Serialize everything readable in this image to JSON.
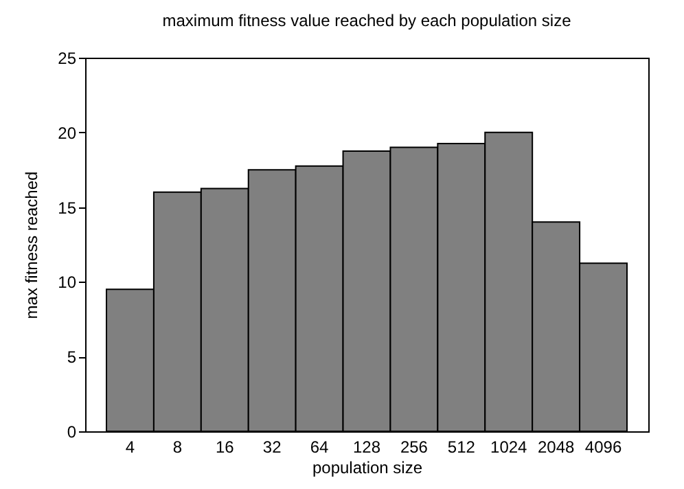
{
  "chart_data": {
    "type": "bar",
    "title": "maximum fitness value reached by each population size",
    "xlabel": "population size",
    "ylabel": "max fitness reached",
    "categories": [
      "4",
      "8",
      "16",
      "32",
      "64",
      "128",
      "256",
      "512",
      "1024",
      "2048",
      "4096"
    ],
    "values": [
      9.5,
      16,
      16.25,
      17.5,
      17.75,
      18.75,
      19,
      19.25,
      20,
      14,
      11.25
    ],
    "color": "#808080",
    "ylim": [
      0,
      25
    ],
    "yticks": [
      0,
      5,
      10,
      15,
      20,
      25
    ],
    "grid": false
  }
}
